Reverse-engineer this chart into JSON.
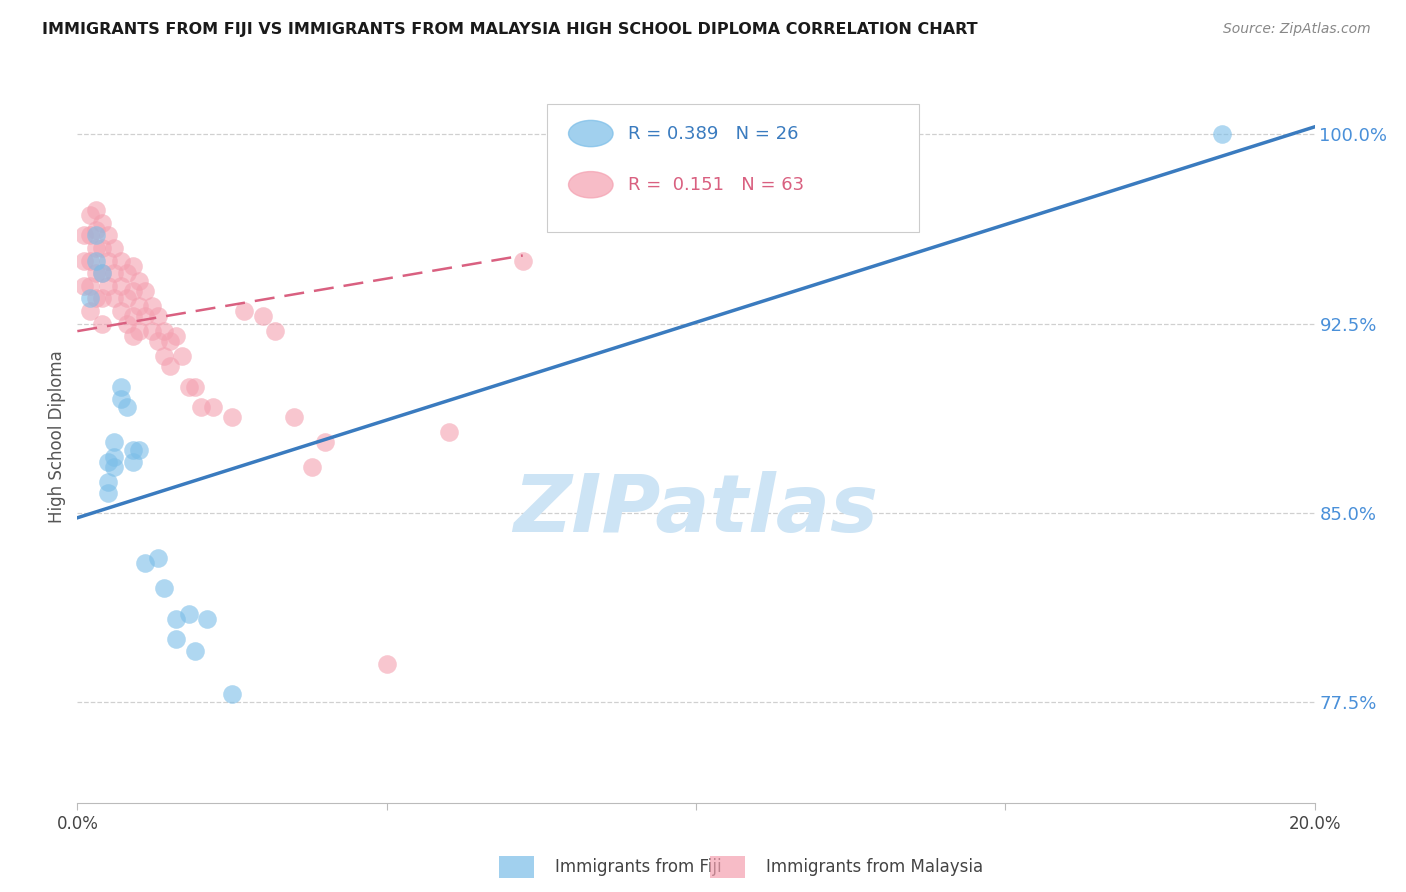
{
  "title": "IMMIGRANTS FROM FIJI VS IMMIGRANTS FROM MALAYSIA HIGH SCHOOL DIPLOMA CORRELATION CHART",
  "source": "Source: ZipAtlas.com",
  "ylabel": "High School Diploma",
  "xlim": [
    0.0,
    0.2
  ],
  "ylim": [
    0.735,
    1.025
  ],
  "yticks": [
    0.775,
    0.85,
    0.925,
    1.0
  ],
  "ytick_labels": [
    "77.5%",
    "85.0%",
    "92.5%",
    "100.0%"
  ],
  "xticks": [
    0.0,
    0.05,
    0.1,
    0.15,
    0.2
  ],
  "xtick_labels": [
    "0.0%",
    "",
    "",
    "",
    "20.0%"
  ],
  "fiji_R": 0.389,
  "fiji_N": 26,
  "malaysia_R": 0.151,
  "malaysia_N": 63,
  "fiji_color": "#7abde8",
  "malaysia_color": "#f4a0b0",
  "fiji_line_color": "#3a7bbf",
  "malaysia_line_color": "#d96080",
  "fiji_x": [
    0.002,
    0.003,
    0.003,
    0.004,
    0.005,
    0.005,
    0.005,
    0.006,
    0.006,
    0.006,
    0.007,
    0.007,
    0.008,
    0.009,
    0.009,
    0.01,
    0.011,
    0.013,
    0.014,
    0.016,
    0.016,
    0.018,
    0.019,
    0.021,
    0.025,
    0.185
  ],
  "fiji_y": [
    0.935,
    0.96,
    0.95,
    0.945,
    0.87,
    0.862,
    0.858,
    0.878,
    0.872,
    0.868,
    0.9,
    0.895,
    0.892,
    0.875,
    0.87,
    0.875,
    0.83,
    0.832,
    0.82,
    0.808,
    0.8,
    0.81,
    0.795,
    0.808,
    0.778,
    1.0
  ],
  "malaysia_x": [
    0.001,
    0.001,
    0.001,
    0.002,
    0.002,
    0.002,
    0.002,
    0.002,
    0.003,
    0.003,
    0.003,
    0.003,
    0.003,
    0.004,
    0.004,
    0.004,
    0.004,
    0.004,
    0.005,
    0.005,
    0.005,
    0.006,
    0.006,
    0.006,
    0.007,
    0.007,
    0.007,
    0.008,
    0.008,
    0.008,
    0.009,
    0.009,
    0.009,
    0.009,
    0.01,
    0.01,
    0.01,
    0.011,
    0.011,
    0.012,
    0.012,
    0.013,
    0.013,
    0.014,
    0.014,
    0.015,
    0.015,
    0.016,
    0.017,
    0.018,
    0.019,
    0.02,
    0.022,
    0.025,
    0.027,
    0.03,
    0.032,
    0.035,
    0.04,
    0.05,
    0.06,
    0.072,
    0.038
  ],
  "malaysia_y": [
    0.96,
    0.95,
    0.94,
    0.968,
    0.96,
    0.95,
    0.94,
    0.93,
    0.97,
    0.962,
    0.955,
    0.945,
    0.935,
    0.965,
    0.955,
    0.945,
    0.935,
    0.925,
    0.96,
    0.95,
    0.94,
    0.955,
    0.945,
    0.935,
    0.95,
    0.94,
    0.93,
    0.945,
    0.935,
    0.925,
    0.948,
    0.938,
    0.928,
    0.92,
    0.942,
    0.932,
    0.922,
    0.938,
    0.928,
    0.932,
    0.922,
    0.928,
    0.918,
    0.922,
    0.912,
    0.918,
    0.908,
    0.92,
    0.912,
    0.9,
    0.9,
    0.892,
    0.892,
    0.888,
    0.93,
    0.928,
    0.922,
    0.888,
    0.878,
    0.79,
    0.882,
    0.95,
    0.868
  ],
  "fiji_line_x": [
    0.0,
    0.2
  ],
  "fiji_line_y": [
    0.848,
    1.003
  ],
  "malaysia_line_x": [
    0.0,
    0.072
  ],
  "malaysia_line_y": [
    0.922,
    0.952
  ],
  "watermark_text": "ZIPatlas",
  "watermark_color": "#cde4f5",
  "background_color": "#ffffff",
  "grid_color": "#d0d0d0",
  "legend_fiji_text": "R = 0.389   N = 26",
  "legend_malaysia_text": "R =  0.151   N = 63",
  "bottom_legend_fiji": "Immigrants from Fiji",
  "bottom_legend_malaysia": "Immigrants from Malaysia"
}
